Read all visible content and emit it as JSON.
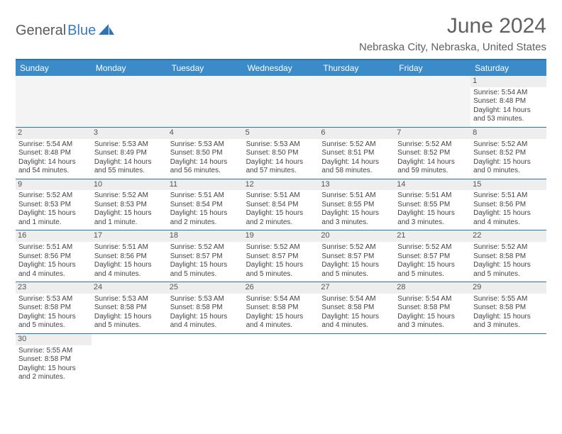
{
  "logo": {
    "part1": "General",
    "part2": "Blue"
  },
  "title": "June 2024",
  "location": "Nebraska City, Nebraska, United States",
  "colors": {
    "header_bg": "#3b8bc9",
    "header_text": "#ffffff",
    "border": "#2b74b8",
    "daynum_bg": "#eeeeee",
    "empty_bg": "#f4f4f4",
    "text": "#444444",
    "title_text": "#606060",
    "logo_dark": "#5a5a5a",
    "logo_blue": "#3b7bbf"
  },
  "day_names": [
    "Sunday",
    "Monday",
    "Tuesday",
    "Wednesday",
    "Thursday",
    "Friday",
    "Saturday"
  ],
  "weeks": [
    [
      null,
      null,
      null,
      null,
      null,
      null,
      {
        "n": "1",
        "sr": "5:54 AM",
        "ss": "8:48 PM",
        "dl": "14 hours and 53 minutes."
      }
    ],
    [
      {
        "n": "2",
        "sr": "5:54 AM",
        "ss": "8:48 PM",
        "dl": "14 hours and 54 minutes."
      },
      {
        "n": "3",
        "sr": "5:53 AM",
        "ss": "8:49 PM",
        "dl": "14 hours and 55 minutes."
      },
      {
        "n": "4",
        "sr": "5:53 AM",
        "ss": "8:50 PM",
        "dl": "14 hours and 56 minutes."
      },
      {
        "n": "5",
        "sr": "5:53 AM",
        "ss": "8:50 PM",
        "dl": "14 hours and 57 minutes."
      },
      {
        "n": "6",
        "sr": "5:52 AM",
        "ss": "8:51 PM",
        "dl": "14 hours and 58 minutes."
      },
      {
        "n": "7",
        "sr": "5:52 AM",
        "ss": "8:52 PM",
        "dl": "14 hours and 59 minutes."
      },
      {
        "n": "8",
        "sr": "5:52 AM",
        "ss": "8:52 PM",
        "dl": "15 hours and 0 minutes."
      }
    ],
    [
      {
        "n": "9",
        "sr": "5:52 AM",
        "ss": "8:53 PM",
        "dl": "15 hours and 1 minute."
      },
      {
        "n": "10",
        "sr": "5:52 AM",
        "ss": "8:53 PM",
        "dl": "15 hours and 1 minute."
      },
      {
        "n": "11",
        "sr": "5:51 AM",
        "ss": "8:54 PM",
        "dl": "15 hours and 2 minutes."
      },
      {
        "n": "12",
        "sr": "5:51 AM",
        "ss": "8:54 PM",
        "dl": "15 hours and 2 minutes."
      },
      {
        "n": "13",
        "sr": "5:51 AM",
        "ss": "8:55 PM",
        "dl": "15 hours and 3 minutes."
      },
      {
        "n": "14",
        "sr": "5:51 AM",
        "ss": "8:55 PM",
        "dl": "15 hours and 3 minutes."
      },
      {
        "n": "15",
        "sr": "5:51 AM",
        "ss": "8:56 PM",
        "dl": "15 hours and 4 minutes."
      }
    ],
    [
      {
        "n": "16",
        "sr": "5:51 AM",
        "ss": "8:56 PM",
        "dl": "15 hours and 4 minutes."
      },
      {
        "n": "17",
        "sr": "5:51 AM",
        "ss": "8:56 PM",
        "dl": "15 hours and 4 minutes."
      },
      {
        "n": "18",
        "sr": "5:52 AM",
        "ss": "8:57 PM",
        "dl": "15 hours and 5 minutes."
      },
      {
        "n": "19",
        "sr": "5:52 AM",
        "ss": "8:57 PM",
        "dl": "15 hours and 5 minutes."
      },
      {
        "n": "20",
        "sr": "5:52 AM",
        "ss": "8:57 PM",
        "dl": "15 hours and 5 minutes."
      },
      {
        "n": "21",
        "sr": "5:52 AM",
        "ss": "8:57 PM",
        "dl": "15 hours and 5 minutes."
      },
      {
        "n": "22",
        "sr": "5:52 AM",
        "ss": "8:58 PM",
        "dl": "15 hours and 5 minutes."
      }
    ],
    [
      {
        "n": "23",
        "sr": "5:53 AM",
        "ss": "8:58 PM",
        "dl": "15 hours and 5 minutes."
      },
      {
        "n": "24",
        "sr": "5:53 AM",
        "ss": "8:58 PM",
        "dl": "15 hours and 5 minutes."
      },
      {
        "n": "25",
        "sr": "5:53 AM",
        "ss": "8:58 PM",
        "dl": "15 hours and 4 minutes."
      },
      {
        "n": "26",
        "sr": "5:54 AM",
        "ss": "8:58 PM",
        "dl": "15 hours and 4 minutes."
      },
      {
        "n": "27",
        "sr": "5:54 AM",
        "ss": "8:58 PM",
        "dl": "15 hours and 4 minutes."
      },
      {
        "n": "28",
        "sr": "5:54 AM",
        "ss": "8:58 PM",
        "dl": "15 hours and 3 minutes."
      },
      {
        "n": "29",
        "sr": "5:55 AM",
        "ss": "8:58 PM",
        "dl": "15 hours and 3 minutes."
      }
    ],
    [
      {
        "n": "30",
        "sr": "5:55 AM",
        "ss": "8:58 PM",
        "dl": "15 hours and 2 minutes."
      },
      null,
      null,
      null,
      null,
      null,
      null
    ]
  ],
  "labels": {
    "sunrise": "Sunrise:",
    "sunset": "Sunset:",
    "daylight": "Daylight:"
  }
}
